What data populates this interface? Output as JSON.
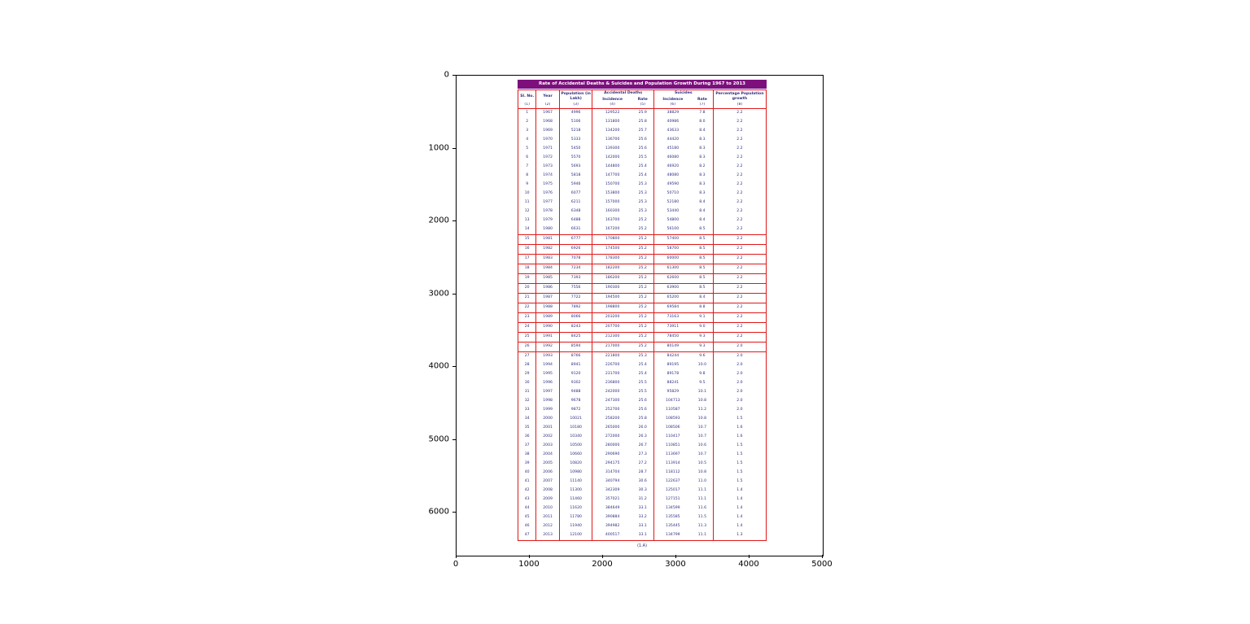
{
  "figure": {
    "x_ticks": [
      0,
      1000,
      2000,
      3000,
      4000,
      5000
    ],
    "y_ticks": [
      0,
      1000,
      2000,
      3000,
      4000,
      5000,
      6000
    ]
  },
  "colors": {
    "title_bar": "#7d0f7d",
    "table_border": "#e01818",
    "cell_text": "#2d2d7f",
    "axes_frame": "#000000"
  },
  "chart_data": {
    "type": "table",
    "title": "Rate of Accidental Deaths & Suicides and Population Growth During 1967 to 2013",
    "caption": "(1.A)",
    "columns": [
      "Sl. No.",
      "Year",
      "Population (in Lakh)",
      "Accidental Deaths",
      "Suicides",
      "Percentage Population growth"
    ],
    "sub_columns": [
      "Incidence",
      "Rate",
      "Incidence",
      "Rate"
    ],
    "column_numbers": [
      "(1)",
      "(2)",
      "(3)",
      "(4)",
      "(5)",
      "(6)",
      "(7)",
      "(8)"
    ],
    "rows": [
      [
        1,
        1967,
        4996,
        129522,
        "25.9",
        38829,
        "7.8",
        "2.2"
      ],
      [
        2,
        1968,
        5106,
        131800,
        "25.8",
        40986,
        "8.0",
        "2.2"
      ],
      [
        3,
        1969,
        5218,
        134200,
        "25.7",
        43633,
        "8.4",
        "2.2"
      ],
      [
        4,
        1970,
        5333,
        136700,
        "25.6",
        44420,
        "8.3",
        "2.2"
      ],
      [
        5,
        1971,
        5450,
        139300,
        "25.6",
        45180,
        "8.3",
        "2.2"
      ],
      [
        6,
        1972,
        5570,
        142000,
        "25.5",
        46080,
        "8.3",
        "2.2"
      ],
      [
        7,
        1973,
        5693,
        144800,
        "25.4",
        46920,
        "8.2",
        "2.2"
      ],
      [
        8,
        1974,
        5818,
        147700,
        "25.4",
        48080,
        "8.3",
        "2.2"
      ],
      [
        9,
        1975,
        5946,
        150700,
        "25.3",
        49590,
        "8.3",
        "2.2"
      ],
      [
        10,
        1976,
        6077,
        153800,
        "25.3",
        50710,
        "8.3",
        "2.2"
      ],
      [
        11,
        1977,
        6211,
        157000,
        "25.3",
        52180,
        "8.4",
        "2.2"
      ],
      [
        12,
        1978,
        6348,
        160300,
        "25.3",
        53440,
        "8.4",
        "2.2"
      ],
      [
        13,
        1979,
        6488,
        163700,
        "25.2",
        54800,
        "8.4",
        "2.2"
      ],
      [
        14,
        1980,
        6631,
        167200,
        "25.2",
        56100,
        "8.5",
        "2.2"
      ],
      [
        15,
        1981,
        6777,
        170800,
        "25.2",
        57400,
        "8.5",
        "2.2"
      ],
      [
        16,
        1982,
        6926,
        174500,
        "25.2",
        58700,
        "8.5",
        "2.2"
      ],
      [
        17,
        1983,
        7078,
        178300,
        "25.2",
        60000,
        "8.5",
        "2.2"
      ],
      [
        18,
        1984,
        7234,
        182200,
        "25.2",
        61300,
        "8.5",
        "2.2"
      ],
      [
        19,
        1985,
        7393,
        186200,
        "25.2",
        62600,
        "8.5",
        "2.2"
      ],
      [
        20,
        1986,
        7556,
        190300,
        "25.2",
        63900,
        "8.5",
        "2.2"
      ],
      [
        21,
        1987,
        7722,
        194500,
        "25.2",
        65200,
        "8.4",
        "2.2"
      ],
      [
        22,
        1988,
        7892,
        198800,
        "25.2",
        69584,
        "8.8",
        "2.2"
      ],
      [
        23,
        1989,
        8066,
        203200,
        "25.2",
        73163,
        "9.1",
        "2.2"
      ],
      [
        24,
        1990,
        8243,
        207700,
        "25.2",
        73911,
        "9.0",
        "2.2"
      ],
      [
        25,
        1991,
        8425,
        212300,
        "25.2",
        78450,
        "9.3",
        "2.2"
      ],
      [
        26,
        1992,
        8594,
        217000,
        "25.2",
        80149,
        "9.3",
        "2.0"
      ],
      [
        27,
        1993,
        8766,
        221800,
        "25.3",
        84244,
        "9.6",
        "2.0"
      ],
      [
        28,
        1994,
        8941,
        226700,
        "25.4",
        89195,
        "10.0",
        "2.0"
      ],
      [
        29,
        1995,
        9120,
        231700,
        "25.4",
        89178,
        "9.8",
        "2.0"
      ],
      [
        30,
        1996,
        9302,
        236800,
        "25.5",
        88241,
        "9.5",
        "2.0"
      ],
      [
        31,
        1997,
        9488,
        242000,
        "25.5",
        95829,
        "10.1",
        "2.0"
      ],
      [
        32,
        1998,
        9678,
        247300,
        "25.6",
        104713,
        "10.8",
        "2.0"
      ],
      [
        33,
        1999,
        9872,
        252700,
        "25.6",
        110587,
        "11.2",
        "2.0"
      ],
      [
        34,
        2000,
        10021,
        258200,
        "25.8",
        108593,
        "10.8",
        "1.5"
      ],
      [
        35,
        2001,
        10180,
        265000,
        "26.0",
        108506,
        "10.7",
        "1.6"
      ],
      [
        36,
        2002,
        10340,
        272000,
        "26.3",
        110417,
        "10.7",
        "1.6"
      ],
      [
        37,
        2003,
        10500,
        280000,
        "26.7",
        110851,
        "10.6",
        "1.5"
      ],
      [
        38,
        2004,
        10660,
        290690,
        "27.3",
        113697,
        "10.7",
        "1.5"
      ],
      [
        39,
        2005,
        10820,
        294175,
        "27.2",
        113914,
        "10.5",
        "1.5"
      ],
      [
        40,
        2006,
        10980,
        314704,
        "28.7",
        118112,
        "10.8",
        "1.5"
      ],
      [
        41,
        2007,
        11140,
        340794,
        "30.6",
        122637,
        "11.0",
        "1.5"
      ],
      [
        42,
        2008,
        11300,
        342309,
        "30.3",
        125017,
        "11.1",
        "1.4"
      ],
      [
        43,
        2009,
        11460,
        357021,
        "31.2",
        127151,
        "11.1",
        "1.4"
      ],
      [
        44,
        2010,
        11620,
        384649,
        "33.1",
        134599,
        "11.6",
        "1.4"
      ],
      [
        45,
        2011,
        11780,
        390884,
        "33.2",
        135585,
        "11.5",
        "1.4"
      ],
      [
        46,
        2012,
        11940,
        394982,
        "33.1",
        135445,
        "11.3",
        "1.4"
      ],
      [
        47,
        2013,
        12100,
        400517,
        "33.1",
        134799,
        "11.1",
        "1.3"
      ]
    ],
    "boxed_row_range": [
      15,
      26
    ]
  }
}
